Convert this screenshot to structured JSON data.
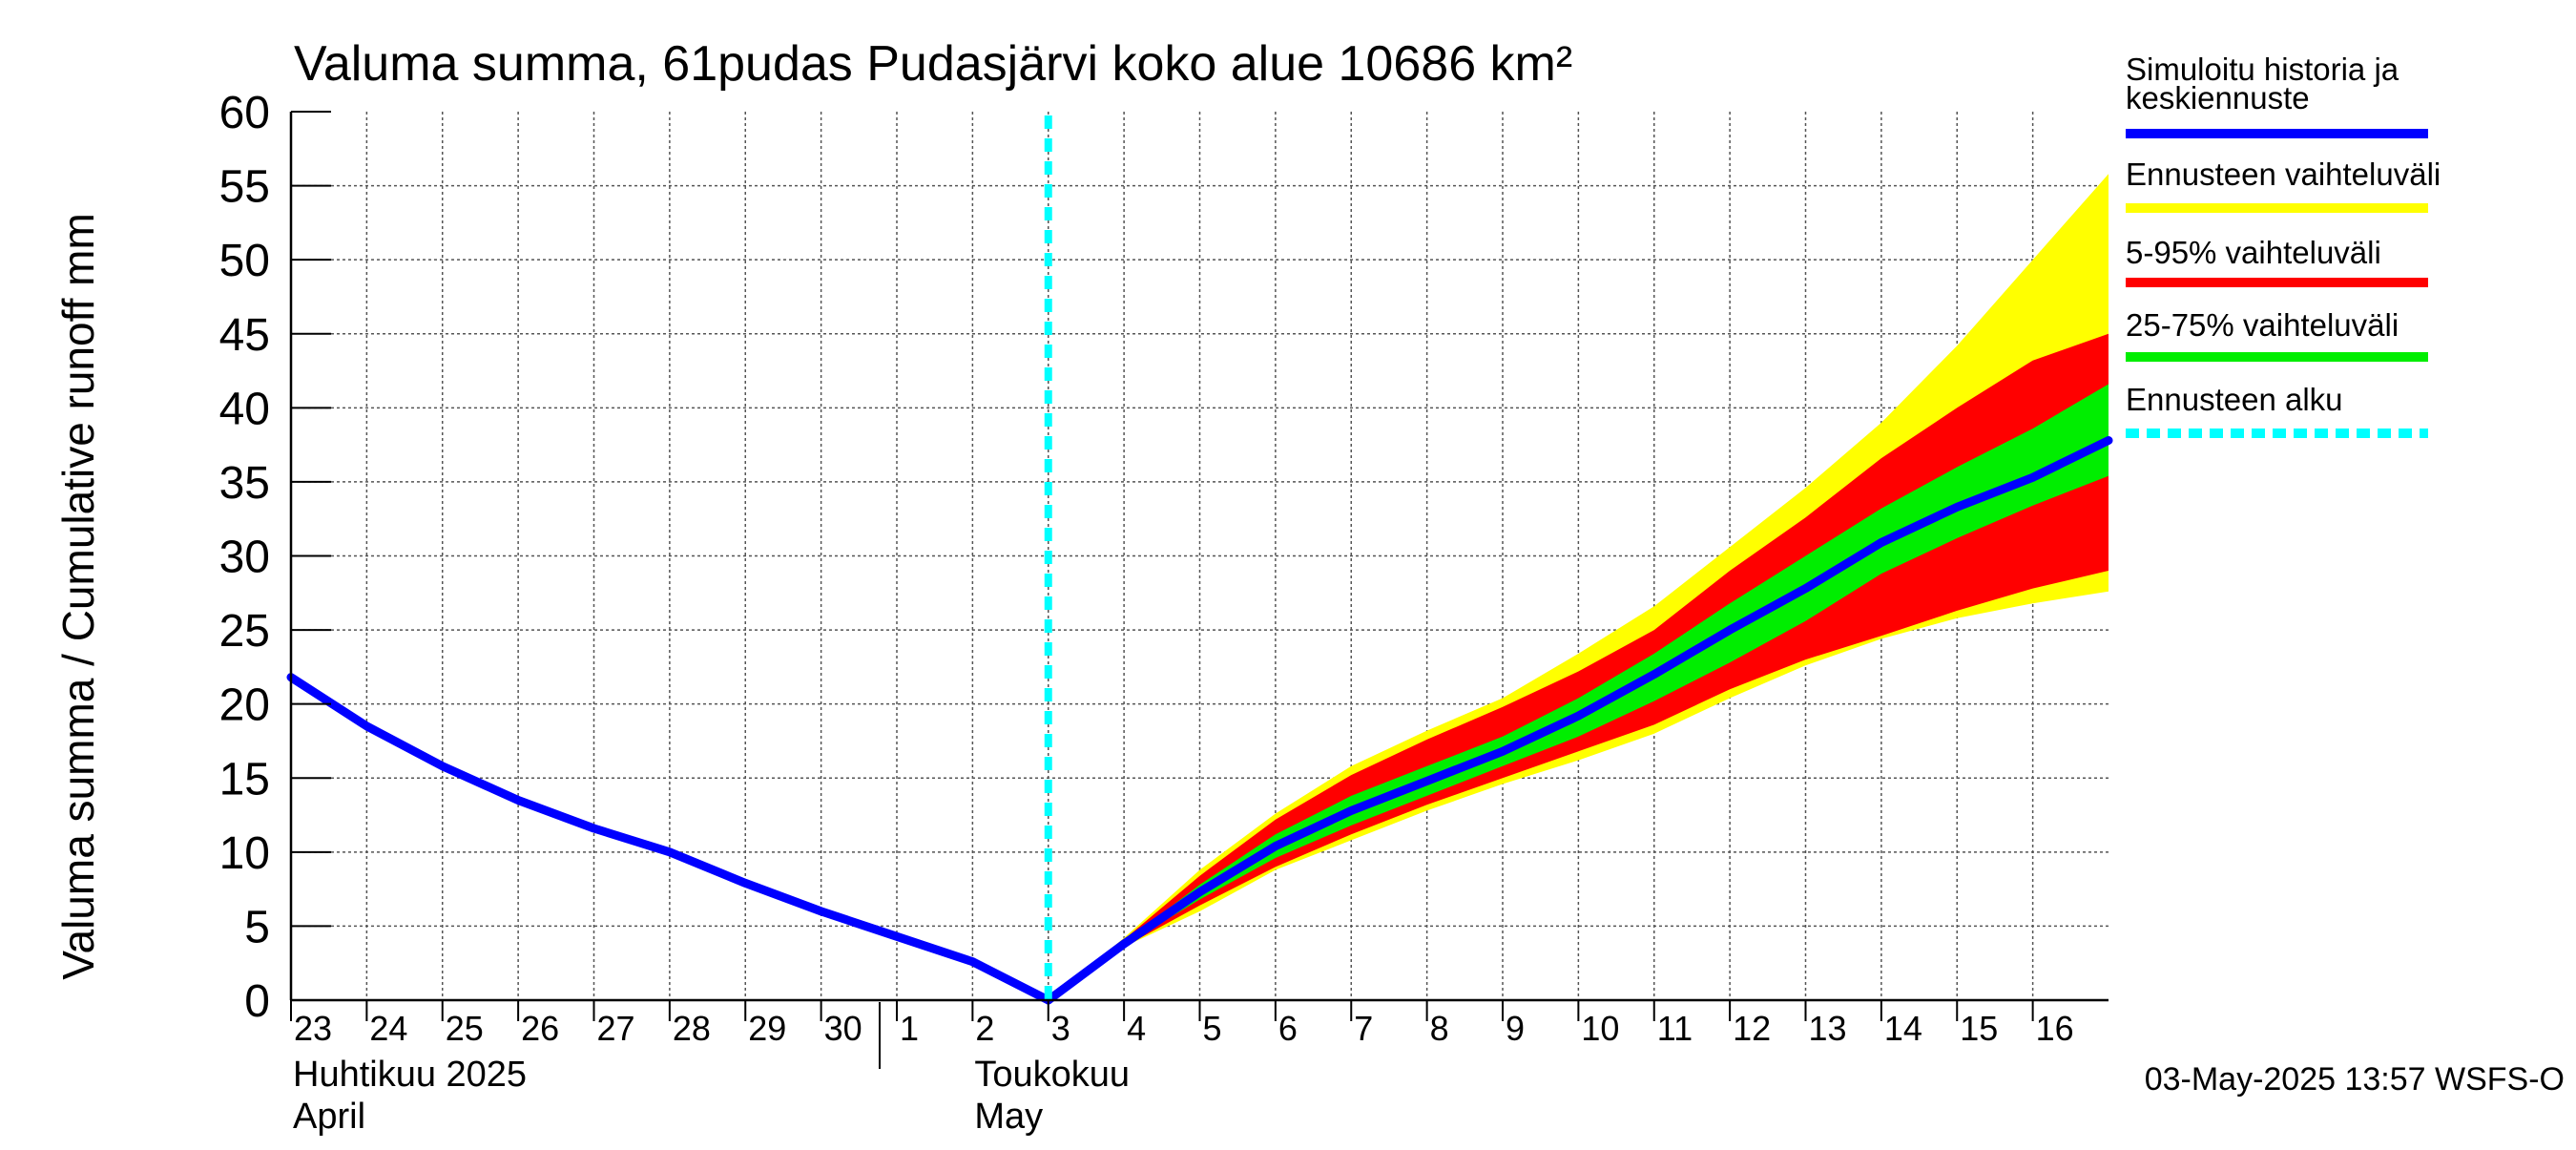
{
  "chart_data": {
    "type": "area",
    "title": "Valuma summa, 61pudas Pudasjärvi koko alue 10686 km²",
    "ylabel": "Valuma summa / Cumulative runoff     mm",
    "ylim": [
      0,
      60
    ],
    "yticks": [
      0,
      5,
      10,
      15,
      20,
      25,
      30,
      35,
      40,
      45,
      50,
      55,
      60
    ],
    "xlim": [
      0,
      24
    ],
    "day_ticks": [
      {
        "x": 0,
        "label": "23"
      },
      {
        "x": 1,
        "label": "24"
      },
      {
        "x": 2,
        "label": "25"
      },
      {
        "x": 3,
        "label": "26"
      },
      {
        "x": 4,
        "label": "27"
      },
      {
        "x": 5,
        "label": "28"
      },
      {
        "x": 6,
        "label": "29"
      },
      {
        "x": 7,
        "label": "30"
      },
      {
        "x": 8,
        "label": "1"
      },
      {
        "x": 9,
        "label": "2"
      },
      {
        "x": 10,
        "label": "3"
      },
      {
        "x": 11,
        "label": "4"
      },
      {
        "x": 12,
        "label": "5"
      },
      {
        "x": 13,
        "label": "6"
      },
      {
        "x": 14,
        "label": "7"
      },
      {
        "x": 15,
        "label": "8"
      },
      {
        "x": 16,
        "label": "9"
      },
      {
        "x": 17,
        "label": "10"
      },
      {
        "x": 18,
        "label": "11"
      },
      {
        "x": 19,
        "label": "12"
      },
      {
        "x": 20,
        "label": "13"
      },
      {
        "x": 21,
        "label": "14"
      },
      {
        "x": 22,
        "label": "15"
      },
      {
        "x": 23,
        "label": "16"
      }
    ],
    "month_labels": [
      {
        "x": 0,
        "line1": "Huhtikuu  2025",
        "line2": "April"
      },
      {
        "x": 9,
        "line1": "Toukokuu",
        "line2": "May"
      }
    ],
    "month_separator_x": 8,
    "forecast_start_x": 10,
    "history": {
      "name": "Simuloitu historia ja keskiennuste",
      "color": "#0000ff",
      "x": [
        0,
        1,
        2,
        3,
        4,
        5,
        6,
        7,
        8,
        9,
        10
      ],
      "y": [
        21.8,
        18.5,
        15.8,
        13.5,
        11.6,
        10.0,
        7.9,
        6.0,
        4.3,
        2.6,
        0
      ]
    },
    "median": {
      "name": "Simuloitu historia ja keskiennuste",
      "color": "#0000ff",
      "x": [
        10,
        11,
        12,
        13,
        14,
        15,
        16,
        17,
        18,
        19,
        20,
        21,
        22,
        23,
        24
      ],
      "y": [
        0,
        3.8,
        7.3,
        10.4,
        12.8,
        14.8,
        16.8,
        19.2,
        22.0,
        25.0,
        27.8,
        30.9,
        33.3,
        35.3,
        37.8
      ]
    },
    "bands": [
      {
        "name": "Ennusteen vaihteluväli",
        "color": "#ffff00",
        "x": [
          10,
          11,
          12,
          13,
          14,
          15,
          16,
          17,
          18,
          19,
          20,
          21,
          22,
          23,
          24
        ],
        "lower": [
          0,
          3.6,
          6.0,
          8.8,
          10.8,
          12.8,
          14.6,
          16.2,
          18.0,
          20.4,
          22.6,
          24.4,
          25.8,
          26.8,
          27.6
        ],
        "upper": [
          0,
          4.2,
          8.8,
          12.6,
          15.8,
          18.2,
          20.4,
          23.4,
          26.6,
          30.6,
          34.6,
          39.0,
          44.2,
          50.0,
          55.8
        ]
      },
      {
        "name": "5-95% vaihteluväli",
        "color": "#ff0000",
        "x": [
          10,
          11,
          12,
          13,
          14,
          15,
          16,
          17,
          18,
          19,
          20,
          21,
          22,
          23,
          24
        ],
        "lower": [
          0,
          3.6,
          6.4,
          9.0,
          11.2,
          13.2,
          15.0,
          16.8,
          18.6,
          21.0,
          23.0,
          24.6,
          26.3,
          27.8,
          29.0
        ],
        "upper": [
          0,
          4.1,
          8.4,
          12.2,
          15.2,
          17.6,
          19.8,
          22.2,
          25.0,
          29.0,
          32.6,
          36.6,
          40.0,
          43.2,
          45.0
        ]
      },
      {
        "name": "25-75% vaihteluväli",
        "color": "#00ee00",
        "x": [
          10,
          11,
          12,
          13,
          14,
          15,
          16,
          17,
          18,
          19,
          20,
          21,
          22,
          23,
          24
        ],
        "lower": [
          0,
          3.7,
          6.8,
          9.6,
          11.8,
          13.8,
          15.8,
          17.8,
          20.2,
          22.8,
          25.6,
          28.8,
          31.2,
          33.4,
          35.4
        ],
        "upper": [
          0,
          3.9,
          7.8,
          11.2,
          13.8,
          15.8,
          17.8,
          20.4,
          23.4,
          26.8,
          30.0,
          33.2,
          36.0,
          38.6,
          41.6
        ]
      }
    ],
    "legend": {
      "placement": "right",
      "entries": [
        {
          "line1": "Simuloitu historia ja",
          "line2": "keskiennuste",
          "color": "#0000ff",
          "style": "solid"
        },
        {
          "line1": "Ennusteen vaihteluväli",
          "line2": "",
          "color": "#ffff00",
          "style": "solid"
        },
        {
          "line1": "5-95% vaihteluväli",
          "line2": "",
          "color": "#ff0000",
          "style": "solid"
        },
        {
          "line1": "25-75% vaihteluväli",
          "line2": "",
          "color": "#00ee00",
          "style": "solid"
        },
        {
          "line1": "Ennusteen alku",
          "line2": "",
          "color": "#00ffff",
          "style": "dashed"
        }
      ]
    },
    "footer": "03-May-2025 13:57 WSFS-O",
    "grid": true
  }
}
